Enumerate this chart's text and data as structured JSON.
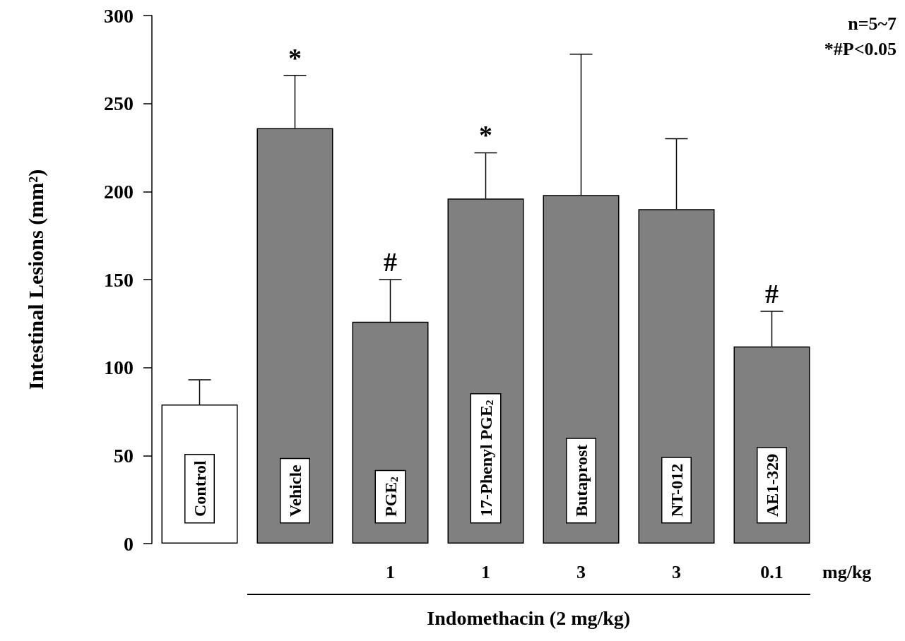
{
  "chart_data": {
    "type": "bar",
    "ylabel": "Intestinal Lesions (mm²)",
    "xlabel": "Indomethacin (2 mg/kg)",
    "categories": [
      "Control",
      "Vehicle",
      "PGE$_{2}$",
      "17-Phenyl PGE$_{2}$",
      "Butaprost",
      "NT-012",
      "AE1-329"
    ],
    "values": [
      79,
      236,
      126,
      196,
      198,
      190,
      112
    ],
    "colors": [
      "#ffffff",
      "#808080",
      "#808080",
      "#808080",
      "#808080",
      "#808080",
      "#808080"
    ],
    "errors": [
      [
        79,
        93
      ],
      [
        236,
        266
      ],
      [
        126,
        150
      ],
      [
        196,
        222
      ],
      [
        198,
        278
      ],
      [
        190,
        230
      ],
      [
        112,
        132
      ]
    ],
    "ylim": [
      0,
      300
    ],
    "yticks": [
      0,
      50,
      100,
      150,
      200,
      250,
      300
    ],
    "grid": false,
    "annotations": [
      {
        "text": "*",
        "x": "Vehicle",
        "y": 266
      },
      {
        "text": "#",
        "x": "PGE$_{2}$",
        "y": 150
      },
      {
        "text": "*",
        "x": "17-Phenyl PGE$_{2}$",
        "y": 222
      },
      {
        "text": "#",
        "x": "AE1-329",
        "y": 132
      },
      "1",
      "1",
      "3",
      "3",
      "0.1",
      "mg/kg",
      "n=5~7",
      "*#P<0.05"
    ]
  }
}
